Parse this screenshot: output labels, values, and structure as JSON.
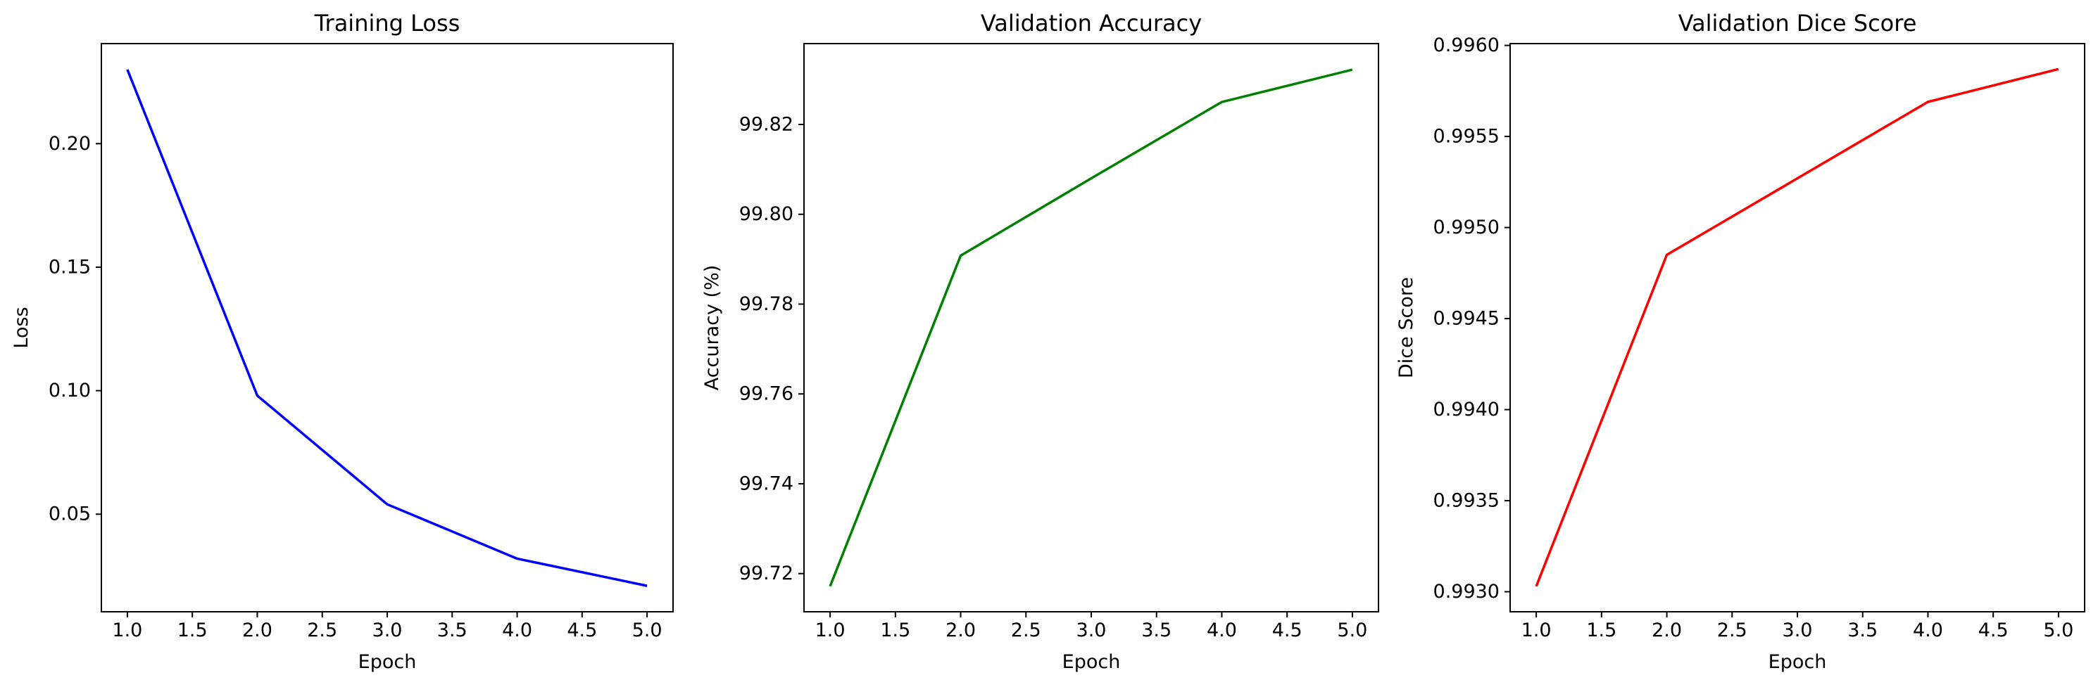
{
  "chart_data": [
    {
      "type": "line",
      "title": "Training Loss",
      "xlabel": "Epoch",
      "ylabel": "Loss",
      "x": [
        1,
        2,
        3,
        4,
        5
      ],
      "series": [
        {
          "values": [
            0.23,
            0.098,
            0.054,
            0.032,
            0.021
          ],
          "color": "#0000ff"
        }
      ],
      "xlim": [
        0.8,
        5.2
      ],
      "ylim": [
        0.0105,
        0.2405
      ],
      "xticks": [
        1.0,
        1.5,
        2.0,
        2.5,
        3.0,
        3.5,
        4.0,
        4.5,
        5.0
      ],
      "xtick_labels": [
        "1.0",
        "1.5",
        "2.0",
        "2.5",
        "3.0",
        "3.5",
        "4.0",
        "4.5",
        "5.0"
      ],
      "yticks": [
        0.05,
        0.1,
        0.15,
        0.2
      ],
      "ytick_labels": [
        "0.05",
        "0.10",
        "0.15",
        "0.20"
      ],
      "grid": false
    },
    {
      "type": "line",
      "title": "Validation Accuracy",
      "xlabel": "Epoch",
      "ylabel": "Accuracy (%)",
      "x": [
        1,
        2,
        3,
        4,
        5
      ],
      "series": [
        {
          "values": [
            99.7172,
            99.7908,
            99.808,
            99.825,
            99.8322
          ],
          "color": "#008000"
        }
      ],
      "xlim": [
        0.8,
        5.2
      ],
      "ylim": [
        99.7115,
        99.838
      ],
      "xticks": [
        1.0,
        1.5,
        2.0,
        2.5,
        3.0,
        3.5,
        4.0,
        4.5,
        5.0
      ],
      "xtick_labels": [
        "1.0",
        "1.5",
        "2.0",
        "2.5",
        "3.0",
        "3.5",
        "4.0",
        "4.5",
        "5.0"
      ],
      "yticks": [
        99.72,
        99.74,
        99.76,
        99.78,
        99.8,
        99.82
      ],
      "ytick_labels": [
        "99.72",
        "99.74",
        "99.76",
        "99.78",
        "99.80",
        "99.82"
      ],
      "grid": false
    },
    {
      "type": "line",
      "title": "Validation Dice Score",
      "xlabel": "Epoch",
      "ylabel": "Dice Score",
      "x": [
        1,
        2,
        3,
        4,
        5
      ],
      "series": [
        {
          "values": [
            0.99303,
            0.99485,
            0.99527,
            0.99569,
            0.99587
          ],
          "color": "#ff0000"
        }
      ],
      "xlim": [
        0.8,
        5.2
      ],
      "ylim": [
        0.99289,
        0.99601
      ],
      "xticks": [
        1.0,
        1.5,
        2.0,
        2.5,
        3.0,
        3.5,
        4.0,
        4.5,
        5.0
      ],
      "xtick_labels": [
        "1.0",
        "1.5",
        "2.0",
        "2.5",
        "3.0",
        "3.5",
        "4.0",
        "4.5",
        "5.0"
      ],
      "yticks": [
        0.993,
        0.9935,
        0.994,
        0.9945,
        0.995,
        0.9955,
        0.996
      ],
      "ytick_labels": [
        "0.9930",
        "0.9935",
        "0.9940",
        "0.9945",
        "0.9950",
        "0.9955",
        "0.9960"
      ],
      "grid": false
    }
  ]
}
